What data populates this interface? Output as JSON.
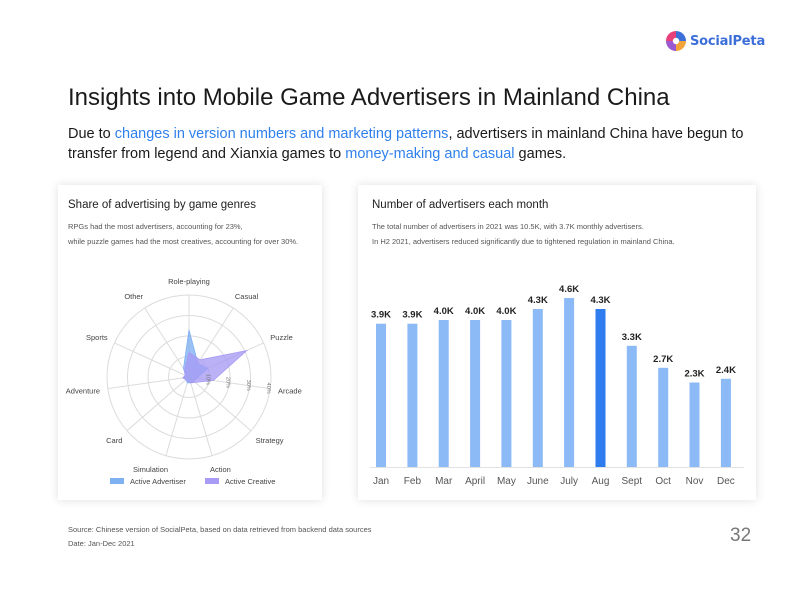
{
  "brand": {
    "logo_text": "SocialPeta"
  },
  "page": {
    "title": "Insights into Mobile Game Advertisers in Mainland China",
    "subtitle": {
      "part1": "Due to ",
      "hl1": "changes in version numbers and marketing patterns",
      "part2": ", advertisers in mainland China have begun to transfer from legend and Xianxia games to ",
      "hl2": "money-making and casual",
      "part3": " games."
    },
    "source": "Source: Chinese version of SocialPeta, based on data retrieved from backend data sources",
    "date": "Date: Jan-Dec 2021",
    "page_number": "32"
  },
  "colors": {
    "accent": "#2f80ed",
    "bar": "#8bbaf7",
    "bar_highlight": "#2f7bf0",
    "advertiser_fill": "#7fb0f2",
    "creative_fill": "#a79bf5"
  },
  "left_card": {
    "title": "Share of advertising by game genres",
    "note1": "RPGs had the most advertisers, accounting for 23%,",
    "note2": "while puzzle games had the most creatives, accounting for over 30%."
  },
  "right_card": {
    "title": "Number of advertisers each month",
    "note1": "The total number of advertisers in 2021 was 10.5K, with 3.7K monthly advertisers.",
    "note2": "In H2 2021, advertisers reduced significantly due to tightened regulation in mainland China."
  },
  "chart_data": [
    {
      "type": "radar",
      "title": "Share of advertising by game genres",
      "axes": [
        "Role-playing",
        "Casual",
        "Puzzle",
        "Arcade",
        "Strategy",
        "Action",
        "Simulation",
        "Card",
        "Adventure",
        "Sports",
        "Other"
      ],
      "radial_ticks": [
        "10%",
        "20%",
        "30%",
        "40%"
      ],
      "rmax": 40,
      "series": [
        {
          "name": "Active Advertiser",
          "values": [
            23,
            8,
            10,
            4,
            3,
            3,
            3,
            2,
            3,
            2,
            5
          ]
        },
        {
          "name": "Active Creative",
          "values": [
            12,
            10,
            31,
            12,
            4,
            3,
            2,
            2,
            3,
            2,
            4
          ]
        }
      ],
      "legend": "bottom"
    },
    {
      "type": "bar",
      "title": "Number of advertisers each month",
      "categories": [
        "Jan",
        "Feb",
        "Mar",
        "April",
        "May",
        "June",
        "July",
        "Aug",
        "Sept",
        "Oct",
        "Nov",
        "Dec"
      ],
      "values": [
        3.9,
        3.9,
        4.0,
        4.0,
        4.0,
        4.3,
        4.6,
        4.3,
        3.3,
        2.7,
        2.3,
        2.4
      ],
      "labels": [
        "3.9K",
        "3.9K",
        "4.0K",
        "4.0K",
        "4.0K",
        "4.3K",
        "4.6K",
        "4.3K",
        "3.3K",
        "2.7K",
        "2.3K",
        "2.4K"
      ],
      "highlight_index": 7,
      "unit": "K",
      "ylim": [
        0,
        4.6
      ]
    }
  ]
}
